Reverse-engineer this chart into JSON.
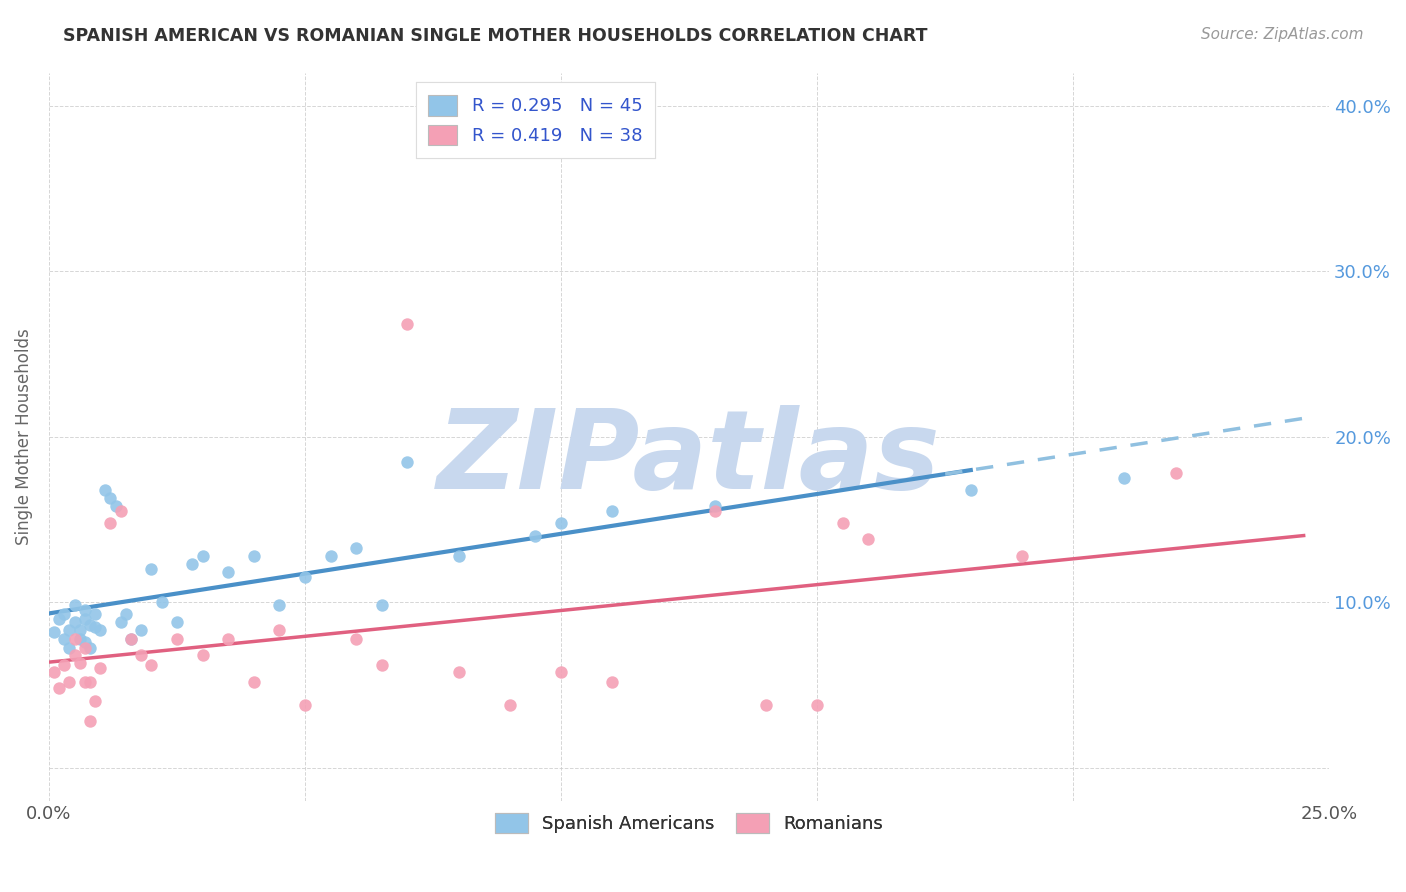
{
  "title": "SPANISH AMERICAN VS ROMANIAN SINGLE MOTHER HOUSEHOLDS CORRELATION CHART",
  "source": "Source: ZipAtlas.com",
  "ylabel": "Single Mother Households",
  "xlim": [
    0.0,
    0.25
  ],
  "ylim": [
    -0.02,
    0.42
  ],
  "yticks": [
    0.0,
    0.1,
    0.2,
    0.3,
    0.4
  ],
  "yticklabels_right": [
    "",
    "10.0%",
    "20.0%",
    "30.0%",
    "40.0%"
  ],
  "xtick_vals": [
    0.0,
    0.05,
    0.1,
    0.15,
    0.2,
    0.25
  ],
  "xticklabels": [
    "0.0%",
    "",
    "",
    "",
    "",
    "25.0%"
  ],
  "r_spanish": 0.295,
  "n_spanish": 45,
  "r_romanian": 0.419,
  "n_romanian": 38,
  "color_spanish": "#92C5E8",
  "color_romanian": "#F4A0B5",
  "trendline_spanish_color": "#4A90C8",
  "trendline_romanian_color": "#E06080",
  "trendline_dashed_color": "#90C0E0",
  "watermark_text": "ZIPatlas",
  "watermark_color": "#C8D8EE",
  "legend_color": "#3355CC",
  "tick_color": "#5599DD",
  "spanish_x": [
    0.001,
    0.002,
    0.003,
    0.003,
    0.004,
    0.004,
    0.005,
    0.005,
    0.006,
    0.006,
    0.007,
    0.007,
    0.007,
    0.008,
    0.008,
    0.009,
    0.009,
    0.01,
    0.011,
    0.012,
    0.013,
    0.014,
    0.015,
    0.016,
    0.018,
    0.02,
    0.022,
    0.025,
    0.028,
    0.03,
    0.035,
    0.04,
    0.045,
    0.05,
    0.055,
    0.06,
    0.065,
    0.07,
    0.08,
    0.095,
    0.1,
    0.11,
    0.13,
    0.18,
    0.21
  ],
  "spanish_y": [
    0.082,
    0.09,
    0.078,
    0.093,
    0.083,
    0.072,
    0.088,
    0.098,
    0.078,
    0.083,
    0.09,
    0.076,
    0.095,
    0.086,
    0.072,
    0.093,
    0.085,
    0.083,
    0.168,
    0.163,
    0.158,
    0.088,
    0.093,
    0.078,
    0.083,
    0.12,
    0.1,
    0.088,
    0.123,
    0.128,
    0.118,
    0.128,
    0.098,
    0.115,
    0.128,
    0.133,
    0.098,
    0.185,
    0.128,
    0.14,
    0.148,
    0.155,
    0.158,
    0.168,
    0.175
  ],
  "romanian_x": [
    0.001,
    0.002,
    0.003,
    0.004,
    0.005,
    0.005,
    0.006,
    0.007,
    0.007,
    0.008,
    0.008,
    0.009,
    0.01,
    0.012,
    0.014,
    0.016,
    0.018,
    0.02,
    0.025,
    0.03,
    0.035,
    0.04,
    0.045,
    0.05,
    0.06,
    0.065,
    0.07,
    0.08,
    0.09,
    0.1,
    0.11,
    0.13,
    0.14,
    0.15,
    0.155,
    0.16,
    0.19,
    0.22
  ],
  "romanian_y": [
    0.058,
    0.048,
    0.062,
    0.052,
    0.068,
    0.078,
    0.063,
    0.072,
    0.052,
    0.052,
    0.028,
    0.04,
    0.06,
    0.148,
    0.155,
    0.078,
    0.068,
    0.062,
    0.078,
    0.068,
    0.078,
    0.052,
    0.083,
    0.038,
    0.078,
    0.062,
    0.268,
    0.058,
    0.038,
    0.058,
    0.052,
    0.155,
    0.038,
    0.038,
    0.148,
    0.138,
    0.128,
    0.178
  ],
  "trendline_x_end_solid_blue": 0.18,
  "trendline_x_start_dash_blue": 0.175,
  "trendline_x_end_dash_blue": 0.245,
  "trendline_x_end_pink": 0.245
}
